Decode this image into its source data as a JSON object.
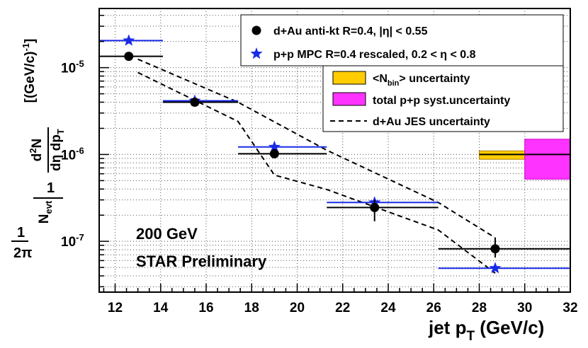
{
  "chart_data": {
    "type": "scatter",
    "title": "",
    "xlabel": "jet p_T (GeV/c)",
    "ylabel": "1/2π 1/N_evt d²N/dη dp_T [(GeV/c)^-1]",
    "xlim": [
      11.3,
      32.0
    ],
    "ylim": [
      2.6e-08,
      4.8e-05
    ],
    "yscale": "log",
    "grid": true,
    "x_ticks": [
      12,
      14,
      16,
      18,
      20,
      22,
      24,
      26,
      28,
      30,
      32
    ],
    "y_ticks": [
      {
        "value": 1e-05,
        "base": "10",
        "exp": "-5"
      },
      {
        "value": 1e-06,
        "base": "10",
        "exp": "-6"
      },
      {
        "value": 1e-07,
        "base": "10",
        "exp": "-7"
      }
    ],
    "annotations": [
      "200 GeV",
      "STAR Preliminary"
    ],
    "legend": {
      "position": "top-right",
      "entries": [
        {
          "key": "dau",
          "text": "d+Au anti-kt R=0.4, |η| < 0.55"
        },
        {
          "key": "pp",
          "text": "p+p MPC R=0.4 rescaled, 0.2 < η < 0.8"
        },
        {
          "key": "nbin",
          "text_pre": "<N",
          "text_sub": "bin",
          "text_post": "> uncertainty"
        },
        {
          "key": "syst",
          "text": "total p+p syst.uncertainty"
        },
        {
          "key": "jes",
          "text": "d+Au JES uncertainty"
        }
      ]
    },
    "series": [
      {
        "name": "d+Au anti-kt R=0.4, |η| < 0.55",
        "marker": "circle",
        "color": "#000000",
        "points": [
          {
            "x": 12.6,
            "y": 1.35e-05,
            "xlo": 11.3,
            "xhi": 14.1,
            "ylo": 1.28e-05,
            "yhi": 1.42e-05
          },
          {
            "x": 15.5,
            "y": 4e-06,
            "xlo": 14.1,
            "xhi": 17.4,
            "ylo": 3.85e-06,
            "yhi": 4.15e-06
          },
          {
            "x": 19.0,
            "y": 1.02e-06,
            "xlo": 17.4,
            "xhi": 21.3,
            "ylo": 9.7e-07,
            "yhi": 1.07e-06
          },
          {
            "x": 23.4,
            "y": 2.45e-07,
            "xlo": 21.3,
            "xhi": 26.2,
            "ylo": 1.7e-07,
            "yhi": 3e-07
          },
          {
            "x": 28.7,
            "y": 8.2e-08,
            "xlo": 26.2,
            "xhi": 32.0,
            "ylo": 6.5e-08,
            "yhi": 1.1e-07
          }
        ]
      },
      {
        "name": "p+p MPC R=0.4 rescaled, 0.2 < η < 0.8",
        "marker": "star",
        "color": "#1a2be6",
        "points": [
          {
            "x": 12.6,
            "y": 2.05e-05,
            "xlo": 11.3,
            "xhi": 14.1
          },
          {
            "x": 15.5,
            "y": 4.15e-06,
            "xlo": 14.1,
            "xhi": 17.4
          },
          {
            "x": 19.0,
            "y": 1.22e-06,
            "xlo": 17.4,
            "xhi": 21.3
          },
          {
            "x": 23.4,
            "y": 2.8e-07,
            "xlo": 21.3,
            "xhi": 26.2
          },
          {
            "x": 28.7,
            "y": 4.9e-08,
            "xlo": 26.2,
            "xhi": 32.0
          }
        ]
      }
    ],
    "jes_band": {
      "upper": [
        [
          13.0,
          1.25e-05
        ],
        [
          17.4,
          4e-06
        ],
        [
          21.3,
          1.12e-06
        ],
        [
          26.2,
          2.8e-07
        ],
        [
          28.7,
          1.1e-07
        ]
      ],
      "lower": [
        [
          13.0,
          8.8e-06
        ],
        [
          17.4,
          2.4e-06
        ],
        [
          19.0,
          5.8e-07
        ],
        [
          21.3,
          3.95e-07
        ],
        [
          26.2,
          1.35e-07
        ],
        [
          28.7,
          4.3e-08
        ]
      ]
    },
    "uncertainty_boxes": [
      {
        "name": "<N_bin> uncertainty",
        "color": "#ffcc00",
        "edge": "#b08000",
        "x0": 28.0,
        "x1": 30.0,
        "y0": 8.8e-07,
        "y1": 1.1e-06,
        "line_y": 1e-06
      },
      {
        "name": "total p+p syst.uncertainty",
        "color": "#ff33ff",
        "edge": "#cc00cc",
        "x0": 30.0,
        "x1": 32.0,
        "y0": 5.2e-07,
        "y1": 1.5e-06,
        "line_y": 1e-06
      }
    ],
    "colors": {
      "dau": "#000000",
      "pp": "#1a2be6",
      "nbin": "#ffcc00",
      "syst": "#ff33ff",
      "jes": "#000000"
    }
  }
}
